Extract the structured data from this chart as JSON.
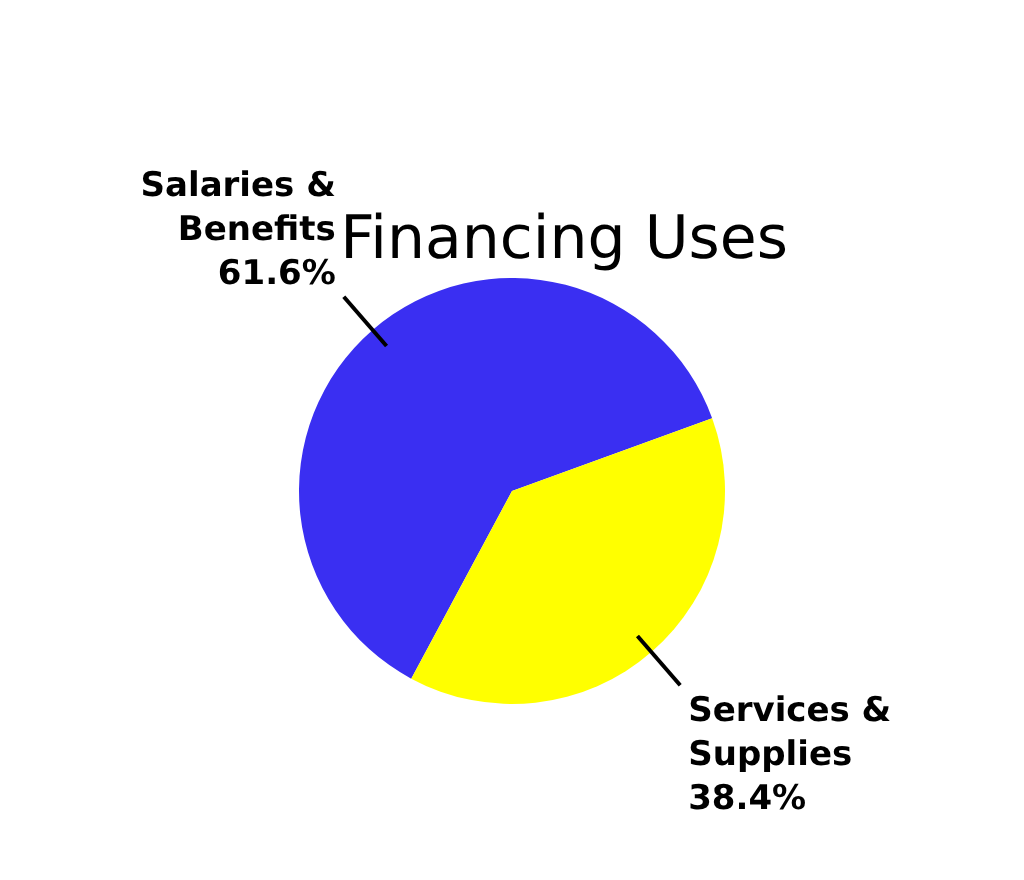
{
  "chart_data": {
    "type": "pie",
    "title": "Financing Uses",
    "categories": [
      "Salaries & Benefits",
      "Services & Supplies"
    ],
    "values": [
      61.6,
      38.4
    ],
    "colors": [
      "#3a2ff2",
      "#ffff00"
    ],
    "value_labels": [
      "61.6%",
      "38.4%"
    ],
    "legend": false
  }
}
